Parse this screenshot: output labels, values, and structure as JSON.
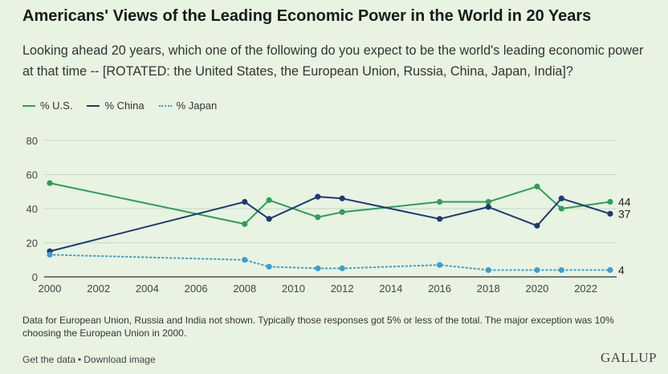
{
  "header": {
    "title": "Americans' Views of the Leading Economic Power in the World in 20 Years",
    "subtitle": "Looking ahead 20 years, which one of the following do you expect to be the world's leading economic power at that time -- [ROTATED: the United States, the European Union, Russia, China, Japan, India]?"
  },
  "legend": {
    "us": "% U.S.",
    "china": "% China",
    "japan": "% Japan"
  },
  "colors": {
    "us": "#2e9e55",
    "china": "#1c3a72",
    "japan": "#3a9fcf",
    "grid": "#c9d7c6",
    "axis": "#333333"
  },
  "chart_data": {
    "type": "line",
    "x_ticks": [
      2000,
      2002,
      2004,
      2006,
      2008,
      2010,
      2012,
      2014,
      2016,
      2018,
      2020,
      2022
    ],
    "xlim": [
      2000,
      2023
    ],
    "ylim": [
      0,
      80
    ],
    "y_ticks": [
      0,
      20,
      40,
      60,
      80
    ],
    "grid": true,
    "legend_position": "top-left",
    "series": [
      {
        "name": "% U.S.",
        "key": "us",
        "style": "solid",
        "end_label": "44",
        "points": [
          [
            2000,
            55
          ],
          [
            2008,
            31
          ],
          [
            2009,
            45
          ],
          [
            2011,
            35
          ],
          [
            2012,
            38
          ],
          [
            2016,
            44
          ],
          [
            2018,
            44
          ],
          [
            2020,
            53
          ],
          [
            2021,
            40
          ],
          [
            2023,
            44
          ]
        ]
      },
      {
        "name": "% China",
        "key": "china",
        "style": "solid",
        "end_label": "37",
        "points": [
          [
            2000,
            15
          ],
          [
            2008,
            44
          ],
          [
            2009,
            34
          ],
          [
            2011,
            47
          ],
          [
            2012,
            46
          ],
          [
            2016,
            34
          ],
          [
            2018,
            41
          ],
          [
            2020,
            30
          ],
          [
            2021,
            46
          ],
          [
            2023,
            37
          ]
        ]
      },
      {
        "name": "% Japan",
        "key": "japan",
        "style": "dotted",
        "end_label": "4",
        "points": [
          [
            2000,
            13
          ],
          [
            2008,
            10
          ],
          [
            2009,
            6
          ],
          [
            2011,
            5
          ],
          [
            2012,
            5
          ],
          [
            2016,
            7
          ],
          [
            2018,
            4
          ],
          [
            2020,
            4
          ],
          [
            2021,
            4
          ],
          [
            2023,
            4
          ]
        ]
      }
    ]
  },
  "footnote": "Data for European Union, Russia and India not shown. Typically those responses got 5% or less of the total. The major exception was 10% choosing the European Union in 2000.",
  "links": {
    "get_data": "Get the data",
    "separator": "•",
    "download": "Download image"
  },
  "brand": "GALLUP"
}
